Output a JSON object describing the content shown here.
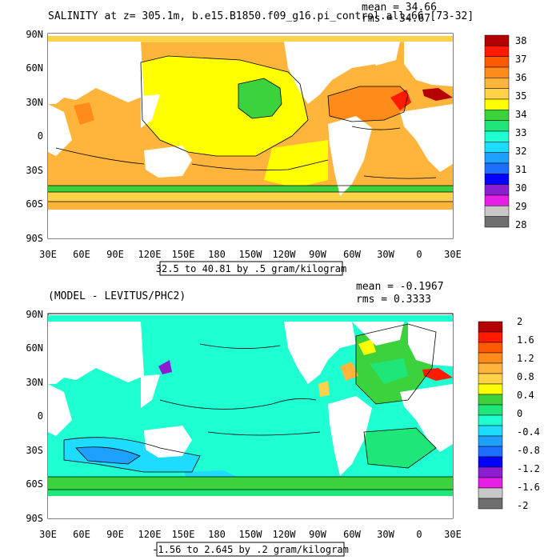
{
  "panels": [
    {
      "title": "SALINITY at z= 305.1m, b.e15.B1850.f09_g16.pi_control.all.66 [73-32]",
      "stat_mean": "mean = 34.66",
      "stat_rms": "rms = 34.67",
      "range_label": "32.5 to 40.81 by .5 gram/kilogram",
      "lat_ticks": [
        "90N",
        "60N",
        "30N",
        "0",
        "30S",
        "60S",
        "90S"
      ],
      "lon_ticks": [
        "30E",
        "60E",
        "90E",
        "120E",
        "150E",
        "180",
        "150W",
        "120W",
        "90W",
        "60W",
        "30W",
        "0",
        "30E"
      ],
      "colorbar": {
        "labels": [
          "38",
          "37",
          "36",
          "35",
          "34",
          "33",
          "32",
          "31",
          "30",
          "29",
          "28"
        ],
        "colors": [
          "#b40000",
          "#ff1a00",
          "#ff5a00",
          "#ff8c1a",
          "#ffb43c",
          "#ffd24a",
          "#ffff00",
          "#3cd23c",
          "#1ee678",
          "#1effd2",
          "#1edcff",
          "#1ea0ff",
          "#1e6eff",
          "#0000ff",
          "#8c1ed2",
          "#e61ee6",
          "#c8c8c8",
          "#6e6e6e"
        ]
      }
    },
    {
      "title": "(MODEL - LEVITUS/PHC2)",
      "stat_mean": "mean = -0.1967",
      "stat_rms": "rms = 0.3333",
      "range_label": "-1.56 to 2.645 by .2 gram/kilogram",
      "lat_ticks": [
        "90N",
        "60N",
        "30N",
        "0",
        "30S",
        "60S",
        "90S"
      ],
      "lon_ticks": [
        "30E",
        "60E",
        "90E",
        "120E",
        "150E",
        "180",
        "150W",
        "120W",
        "90W",
        "60W",
        "30W",
        "0",
        "30E"
      ],
      "colorbar": {
        "labels": [
          "2",
          "1.6",
          "1.2",
          "0.8",
          "0.4",
          "0",
          "-0.4",
          "-0.8",
          "-1.2",
          "-1.6",
          "-2"
        ],
        "colors": [
          "#b40000",
          "#ff1a00",
          "#ff5a00",
          "#ff8c1a",
          "#ffb43c",
          "#ffd24a",
          "#ffff00",
          "#3cd23c",
          "#1ee678",
          "#1effd2",
          "#1edcff",
          "#1ea0ff",
          "#1e6eff",
          "#0000ff",
          "#8c1ed2",
          "#e61ee6",
          "#c8c8c8",
          "#6e6e6e"
        ]
      }
    }
  ]
}
